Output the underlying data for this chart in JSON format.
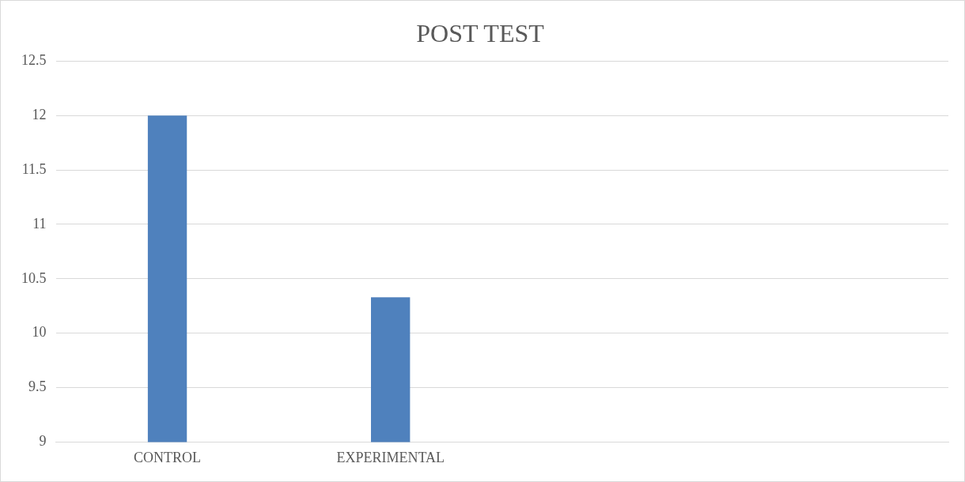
{
  "chart_data": {
    "type": "bar",
    "title": "POST TEST",
    "categories": [
      "CONTROL",
      "EXPERIMENTAL",
      null,
      null
    ],
    "values": [
      12,
      10.33,
      null,
      null
    ],
    "color": "#4f81bd",
    "ylim": [
      9,
      12.5
    ],
    "yticks": [
      9,
      9.5,
      10,
      10.5,
      11,
      11.5,
      12,
      12.5
    ],
    "grid": "y",
    "legend": false
  }
}
